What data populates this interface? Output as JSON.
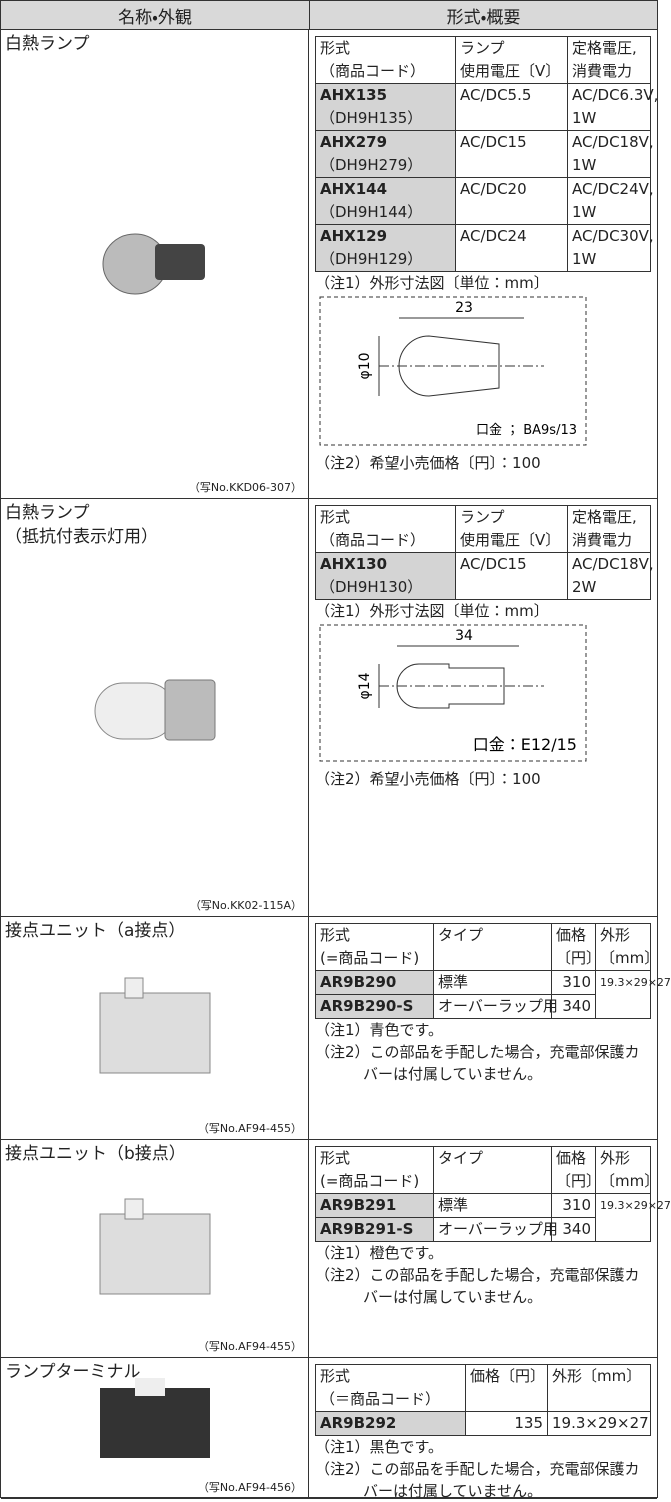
{
  "header": {
    "left": "名称・外観",
    "right": "形式・概要"
  },
  "sections": [
    {
      "name": [
        "白熱ランプ"
      ],
      "photo_caption": "（写No.KKD06-307）",
      "table": {
        "header": [
          [
            "形式",
            "（商品コード）"
          ],
          [
            "ランプ",
            "使用電圧〔V〕"
          ],
          [
            "定格電圧,",
            "消費電力"
          ]
        ],
        "rows": [
          [
            [
              "AHX135",
              "（DH9H135）"
            ],
            [
              "AC/DC5.5"
            ],
            [
              "AC/DC6.3V,",
              "1W"
            ]
          ],
          [
            [
              "AHX279",
              "（DH9H279）"
            ],
            [
              "AC/DC15"
            ],
            [
              "AC/DC18V,",
              "1W"
            ]
          ],
          [
            [
              "AHX144",
              "（DH9H144）"
            ],
            [
              "AC/DC20"
            ],
            [
              "AC/DC24V,",
              "1W"
            ]
          ],
          [
            [
              "AHX129",
              "（DH9H129）"
            ],
            [
              "AC/DC24"
            ],
            [
              "AC/DC30V,",
              "1W"
            ]
          ]
        ]
      },
      "notes": [
        "（注1）外形寸法図〔単位：mm〕",
        "（注2）希望小売価格〔円〕：100"
      ],
      "diagram": {
        "length": "23",
        "diameter": "φ10",
        "base": "口金 ； BA9s/13"
      }
    },
    {
      "name": [
        "白熱ランプ",
        "（抵抗付表示灯用）"
      ],
      "photo_caption": "（写No.KK02-115A）",
      "table": {
        "header": [
          [
            "形式",
            "（商品コード）"
          ],
          [
            "ランプ",
            "使用電圧〔V〕"
          ],
          [
            "定格電圧,",
            "消費電力"
          ]
        ],
        "rows": [
          [
            [
              "AHX130",
              "（DH9H130）"
            ],
            [
              "AC/DC15"
            ],
            [
              "AC/DC18V,",
              "2W"
            ]
          ]
        ]
      },
      "notes": [
        "（注1）外形寸法図〔単位：mm〕",
        "（注2）希望小売価格〔円〕：100"
      ],
      "diagram": {
        "length": "34",
        "diameter": "φ14",
        "base": "口金：E12/15"
      }
    },
    {
      "name": [
        "接点ユニット（a接点）"
      ],
      "photo_caption": "（写No.AF94-455）",
      "table": {
        "header": [
          [
            "形式",
            "(=商品コード)"
          ],
          [
            "タイプ"
          ],
          [
            "価格",
            "〔円〕"
          ],
          [
            "外形",
            "〔mm〕"
          ]
        ],
        "rows": [
          [
            [
              "AR9B290"
            ],
            [
              "標準"
            ],
            [
              "310"
            ],
            [
              "19.3×29×27"
            ]
          ],
          [
            [
              "AR9B290-S"
            ],
            [
              "オーバーラップ用"
            ],
            [
              "340"
            ]
          ]
        ]
      },
      "notes": [
        "（注1）青色です。",
        "（注2）この部品を手配した場合，充電部保護カバーは付属していません。"
      ]
    },
    {
      "name": [
        "接点ユニット（b接点）"
      ],
      "photo_caption": "（写No.AF94-455）",
      "table": {
        "header": [
          [
            "形式",
            "(=商品コード)"
          ],
          [
            "タイプ"
          ],
          [
            "価格",
            "〔円〕"
          ],
          [
            "外形",
            "〔mm〕"
          ]
        ],
        "rows": [
          [
            [
              "AR9B291"
            ],
            [
              "標準"
            ],
            [
              "310"
            ],
            [
              "19.3×29×27"
            ]
          ],
          [
            [
              "AR9B291-S"
            ],
            [
              "オーバーラップ用"
            ],
            [
              "340"
            ]
          ]
        ]
      },
      "notes": [
        "（注1）橙色です。",
        "（注2）この部品を手配した場合，充電部保護カバーは付属していません。"
      ]
    },
    {
      "name": [
        "ランプターミナル"
      ],
      "photo_caption": "（写No.AF94-456）",
      "table": {
        "header": [
          [
            "形式",
            "（＝商品コード）"
          ],
          [
            "価格〔円〕"
          ],
          [
            "外形〔mm〕"
          ]
        ],
        "rows": [
          [
            [
              "AR9B292"
            ],
            [
              "135"
            ],
            [
              "19.3×29×27"
            ]
          ]
        ]
      },
      "notes": [
        "（注1）黒色です。",
        "（注2）この部品を手配した場合，充電部保護カバーは付属していません。"
      ]
    }
  ]
}
